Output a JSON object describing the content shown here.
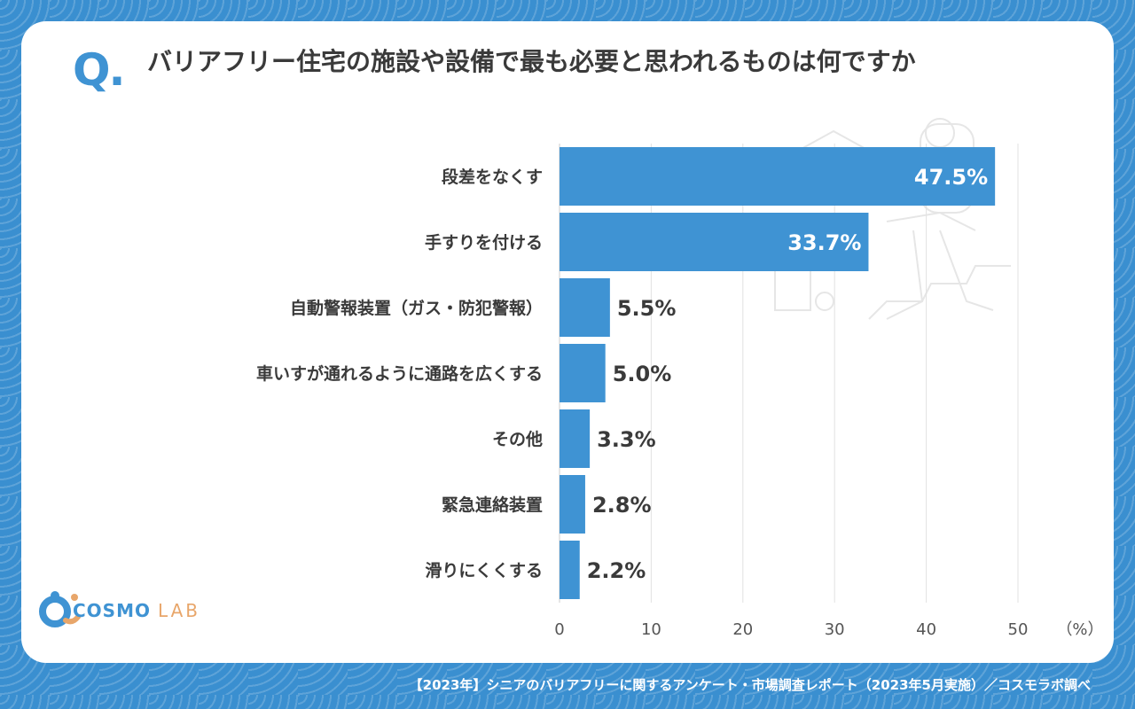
{
  "question_mark": "Q.",
  "title": "バリアフリー住宅の施設や設備で最も必要と思われるものは何ですか",
  "brand": {
    "name_main": "COSMO",
    "name_sub": "LAB",
    "color_main": "#3f93d3",
    "color_sub": "#e8a66a"
  },
  "footer": "【2023年】シニアのバリアフリーに関するアンケート・市場調査レポート（2023年5月実施）／コスモラボ調べ",
  "chart_data": {
    "type": "bar",
    "orientation": "horizontal",
    "categories": [
      "段差をなくす",
      "手すりを付ける",
      "自動警報装置（ガス・防犯警報）",
      "車いすが通れるように通路を広くする",
      "その他",
      "緊急連絡装置",
      "滑りにくくする"
    ],
    "values": [
      47.5,
      33.7,
      5.5,
      5.0,
      3.3,
      2.8,
      2.2
    ],
    "value_labels": [
      "47.5%",
      "33.7%",
      "5.5%",
      "5.0%",
      "3.3%",
      "2.8%",
      "2.2%"
    ],
    "xlim": [
      0,
      50
    ],
    "x_ticks": [
      "0",
      "10",
      "20",
      "30",
      "40",
      "50"
    ],
    "x_unit": "（%）",
    "grid": true,
    "bar_color": "#3f93d3"
  }
}
